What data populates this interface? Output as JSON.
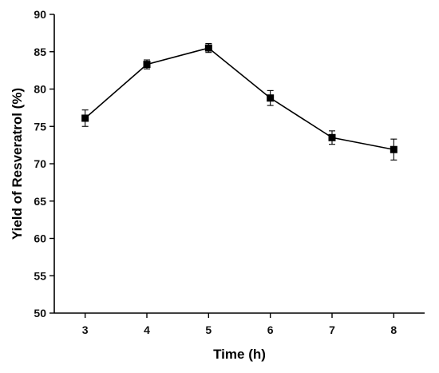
{
  "chart_data": {
    "type": "line",
    "title": "",
    "xlabel": "Time (h)",
    "ylabel": "Yield of Resveratrol (%)",
    "xlim": [
      2.5,
      8.5
    ],
    "ylim": [
      50,
      90
    ],
    "xticks": [
      3,
      4,
      5,
      6,
      7,
      8
    ],
    "yticks": [
      50,
      55,
      60,
      65,
      70,
      75,
      80,
      85,
      90
    ],
    "grid": false,
    "legend": "none",
    "marker": "square",
    "colors": {
      "series": "#000000"
    },
    "series": [
      {
        "x": [
          3,
          4,
          5,
          6,
          7,
          8
        ],
        "y": [
          76.1,
          83.3,
          85.5,
          78.8,
          73.5,
          71.9
        ],
        "error": [
          1.1,
          0.6,
          0.6,
          1.0,
          0.9,
          1.4
        ]
      }
    ]
  }
}
